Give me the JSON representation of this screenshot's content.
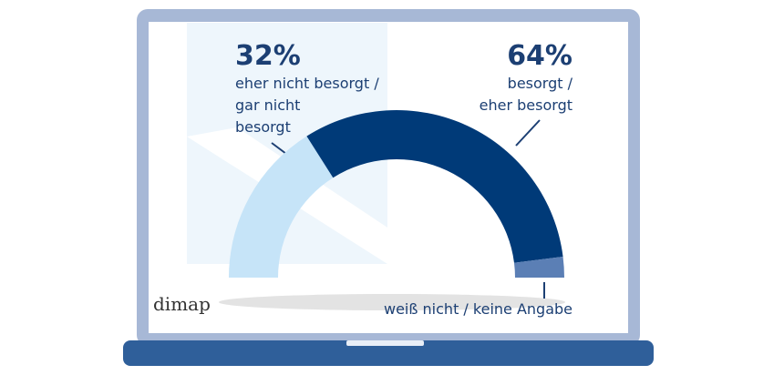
{
  "chart_data": {
    "type": "half-donut",
    "categories": [
      "eher nicht besorgt /\ngar nicht\nbesorgt",
      "besorgt /\neher besorgt",
      "weiß nicht / keine Angabe"
    ],
    "values": [
      32,
      64,
      4
    ],
    "value_labels": [
      "32%",
      "64%",
      null
    ],
    "colors": [
      "#c6e4f8",
      "#003a78",
      "#5b7fb5"
    ],
    "source": "dimap"
  }
}
